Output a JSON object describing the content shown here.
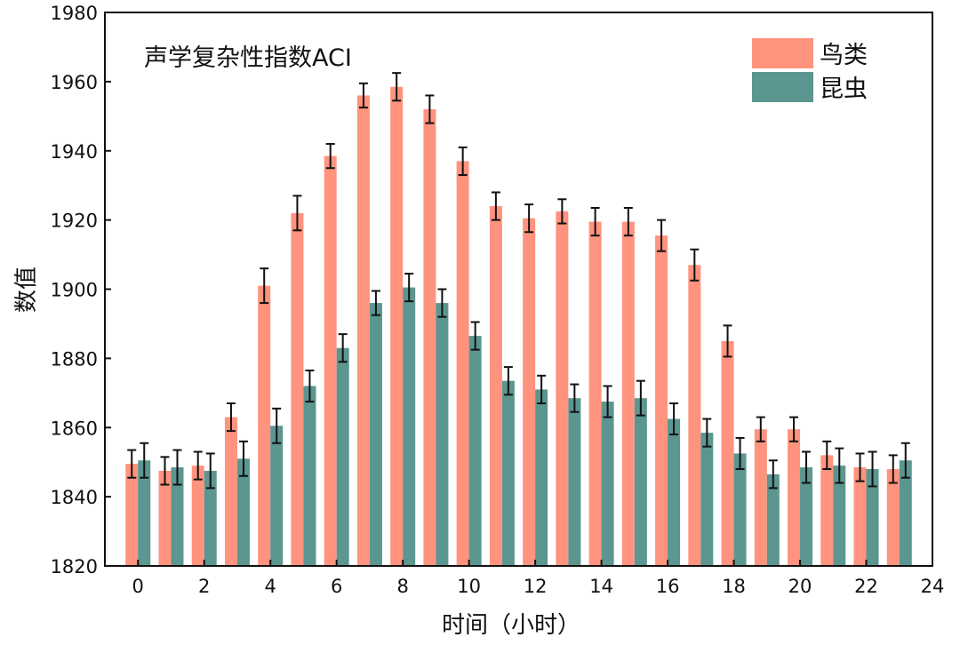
{
  "chart_data": {
    "type": "bar",
    "title": "声学复杂性指数ACI",
    "xlabel": "时间（小时）",
    "ylabel": "数值",
    "xlim": [
      -1,
      24
    ],
    "ylim": [
      1820,
      1980
    ],
    "xticks": [
      0,
      2,
      4,
      6,
      8,
      10,
      12,
      14,
      16,
      18,
      20,
      22,
      24
    ],
    "yticks": [
      1820,
      1840,
      1860,
      1880,
      1900,
      1920,
      1940,
      1960,
      1980
    ],
    "grid": false,
    "legend_position": "top-right",
    "x": [
      0,
      1,
      2,
      3,
      4,
      5,
      6,
      7,
      8,
      9,
      10,
      11,
      12,
      13,
      14,
      15,
      16,
      17,
      18,
      19,
      20,
      21,
      22,
      23
    ],
    "series": [
      {
        "name": "鸟类",
        "color": "#FF937E",
        "values": [
          1849.5,
          1847.5,
          1849,
          1863,
          1901,
          1922,
          1938.5,
          1956,
          1958.5,
          1952,
          1937,
          1924,
          1920.5,
          1922.5,
          1919.5,
          1919.5,
          1915.5,
          1907,
          1885,
          1859.5,
          1859.5,
          1852,
          1848.5,
          1848
        ],
        "errors": [
          4,
          4,
          4,
          4,
          5,
          5,
          3.5,
          3.5,
          4,
          4,
          4,
          4,
          4,
          3.5,
          4,
          4,
          4.5,
          4.5,
          4.5,
          3.5,
          3.5,
          4,
          4,
          4
        ]
      },
      {
        "name": "昆虫",
        "color": "#5B9690",
        "values": [
          1850.5,
          1848.5,
          1847.5,
          1851,
          1860.5,
          1872,
          1883,
          1896,
          1900.5,
          1896,
          1886.5,
          1873.5,
          1871,
          1868.5,
          1867.5,
          1868.5,
          1862.5,
          1858.5,
          1852.5,
          1846.5,
          1848.5,
          1849,
          1848,
          1850.5
        ],
        "errors": [
          5,
          5,
          5,
          5,
          5,
          4.5,
          4,
          3.5,
          4,
          4,
          4,
          4,
          4,
          4,
          4.5,
          5,
          4.5,
          4,
          4.5,
          4,
          4.5,
          5,
          5,
          5
        ]
      }
    ]
  }
}
